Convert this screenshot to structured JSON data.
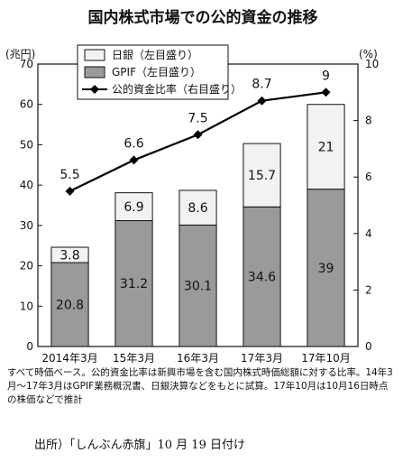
{
  "chart_data": {
    "type": "bar",
    "title": "国内株式市場での公的資金の推移",
    "categories": [
      "2014年3月",
      "15年3月",
      "16年3月",
      "17年3月",
      "17年10月"
    ],
    "left_axis": {
      "unit": "(兆円)",
      "ylim": [
        0,
        70
      ],
      "ticks": [
        "0",
        "10",
        "20",
        "30",
        "40",
        "50",
        "60",
        "70"
      ]
    },
    "right_axis": {
      "unit": "(%)",
      "ylim": [
        0,
        10
      ],
      "ticks": [
        "0",
        "2",
        "4",
        "6",
        "8",
        "10"
      ]
    },
    "series": [
      {
        "name": "日銀（左目盛り）",
        "kind": "bar",
        "axis": "left",
        "values": [
          3.8,
          6.9,
          8.6,
          15.7,
          21
        ],
        "labels": [
          "3.8",
          "6.9",
          "8.6",
          "15.7",
          "21"
        ],
        "color": "#f2f2f2"
      },
      {
        "name": "GPIF（左目盛り）",
        "kind": "bar",
        "axis": "left",
        "values": [
          20.8,
          31.2,
          30.1,
          34.6,
          39
        ],
        "labels": [
          "20.8",
          "31.2",
          "30.1",
          "34.6",
          "39"
        ],
        "color": "#9a9a9a"
      },
      {
        "name": "公的資金比率（右目盛り）",
        "kind": "line",
        "axis": "right",
        "values": [
          5.5,
          6.6,
          7.5,
          8.7,
          9
        ],
        "labels": [
          "5.5",
          "6.6",
          "7.5",
          "8.7",
          "9"
        ],
        "color": "#000000"
      }
    ],
    "stacked": true,
    "grid": false,
    "legend_position": "top-left"
  },
  "note": "すべて時価ベース。公的資金比率は新興市場を含む国内株式時価総額に対する比率。14年3月～17年3月はGPIF業務概況書、日銀決算などをもとに試算。17年10月は10月16日時点の株価などで推計",
  "source": "出所）「しんぶん赤旗」10 月 19 日付け"
}
